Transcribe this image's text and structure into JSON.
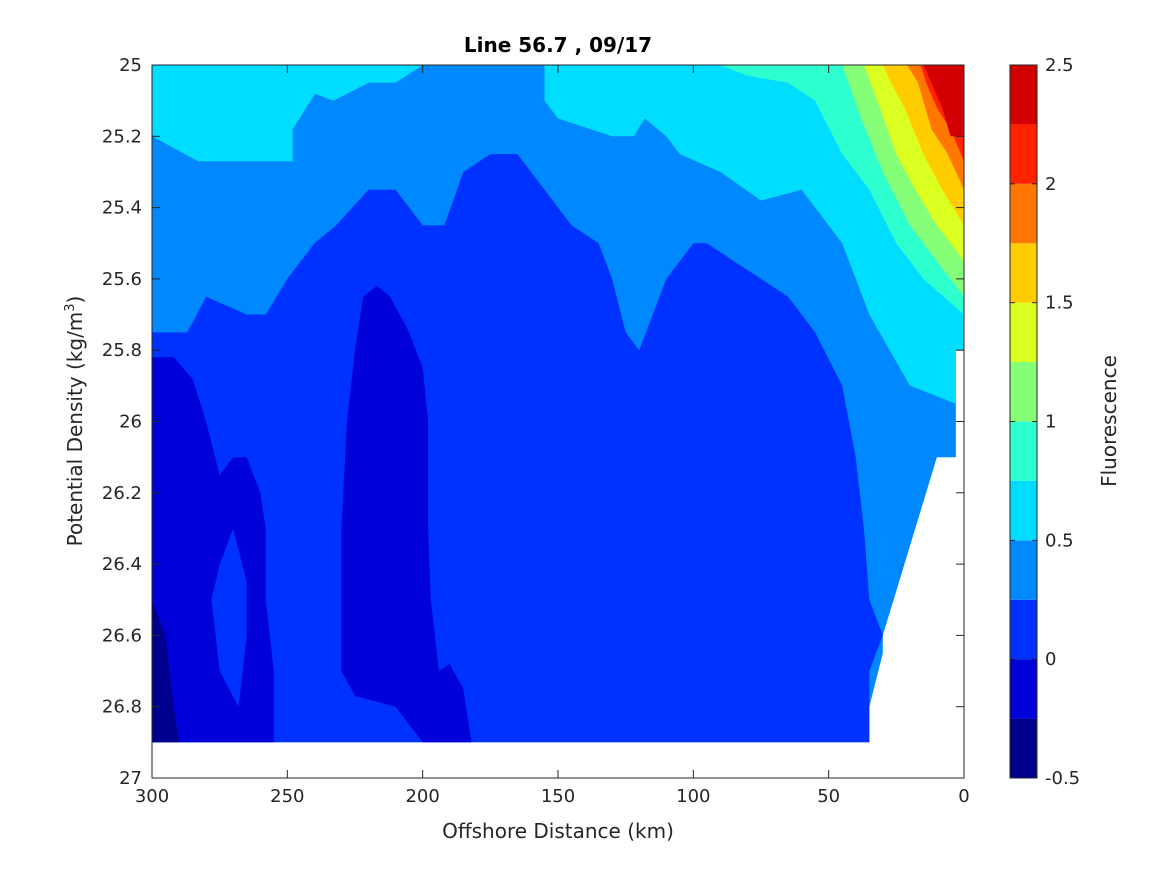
{
  "chart_data": {
    "type": "contour",
    "title": "Line 56.7 , 09/17",
    "xlabel": "Offshore Distance (km)",
    "ylabel_main": "Potential Density (kg/m",
    "ylabel_sup": "3",
    "ylabel_close": ")",
    "colorbar_label": "Fluorescence",
    "xlim": [
      300,
      0
    ],
    "x_reversed": true,
    "ylim": [
      25,
      27
    ],
    "y_reversed": true,
    "x_ticks": [
      300,
      250,
      200,
      150,
      100,
      50,
      0
    ],
    "x_tick_labels": [
      "300",
      "250",
      "200",
      "150",
      "100",
      "50",
      "0"
    ],
    "y_ticks": [
      25,
      25.2,
      25.4,
      25.6,
      25.8,
      26,
      26.2,
      26.4,
      26.6,
      26.8,
      27
    ],
    "y_tick_labels": [
      "25",
      "25.2",
      "25.4",
      "25.6",
      "25.8",
      "26",
      "26.2",
      "26.4",
      "26.6",
      "26.8",
      "27"
    ],
    "colorbar_range": [
      -0.5,
      2.5
    ],
    "colorbar_ticks": [
      -0.5,
      0,
      0.5,
      1,
      1.5,
      2,
      2.5
    ],
    "colorbar_tick_labels": [
      "-0.5",
      "0",
      "0.5",
      "1",
      "1.5",
      "2",
      "2.5"
    ],
    "levels": [
      {
        "min": -0.5,
        "max": -0.25,
        "color": "#00008f"
      },
      {
        "min": -0.25,
        "max": 0.0,
        "color": "#0000d8"
      },
      {
        "min": 0.0,
        "max": 0.25,
        "color": "#0032ff"
      },
      {
        "min": 0.25,
        "max": 0.5,
        "color": "#0088ff"
      },
      {
        "min": 0.5,
        "max": 0.75,
        "color": "#00ddff"
      },
      {
        "min": 0.75,
        "max": 1.0,
        "color": "#2effcf"
      },
      {
        "min": 1.0,
        "max": 1.25,
        "color": "#86ff78"
      },
      {
        "min": 1.25,
        "max": 1.5,
        "color": "#dcff22"
      },
      {
        "min": 1.5,
        "max": 1.75,
        "color": "#ffcc00"
      },
      {
        "min": 1.75,
        "max": 2.0,
        "color": "#ff7700"
      },
      {
        "min": 2.0,
        "max": 2.25,
        "color": "#ff2200"
      },
      {
        "min": 2.25,
        "max": 2.5,
        "color": "#d20000"
      }
    ],
    "regions": [
      {
        "level": 3,
        "points": [
          [
            300,
            25
          ],
          [
            0,
            25
          ],
          [
            0,
            25.8
          ],
          [
            3,
            25.8
          ],
          [
            3,
            26.1
          ],
          [
            10,
            26.1
          ],
          [
            30,
            26.6
          ],
          [
            30,
            26.65
          ],
          [
            35,
            26.8
          ],
          [
            35,
            26.9
          ],
          [
            300,
            26.9
          ]
        ]
      },
      {
        "level": 4,
        "points": [
          [
            300,
            25
          ],
          [
            233,
            25
          ],
          [
            248,
            25.18
          ],
          [
            248,
            25.27
          ],
          [
            270,
            25.27
          ],
          [
            283,
            25.27
          ],
          [
            300,
            25.2
          ]
        ]
      },
      {
        "level": 4,
        "points": [
          [
            243,
            25
          ],
          [
            200,
            25
          ],
          [
            210,
            25.05
          ],
          [
            220,
            25.05
          ],
          [
            233,
            25.1
          ],
          [
            240,
            25.08
          ],
          [
            243,
            25
          ]
        ]
      },
      {
        "level": 4,
        "points": [
          [
            155,
            25
          ],
          [
            0,
            25
          ],
          [
            0,
            25.8
          ],
          [
            3,
            25.8
          ],
          [
            3,
            25.95
          ],
          [
            20,
            25.9
          ],
          [
            35,
            25.7
          ],
          [
            45,
            25.5
          ],
          [
            60,
            25.35
          ],
          [
            75,
            25.38
          ],
          [
            90,
            25.3
          ],
          [
            105,
            25.25
          ],
          [
            110,
            25.2
          ],
          [
            118,
            25.15
          ],
          [
            122,
            25.2
          ],
          [
            130,
            25.2
          ],
          [
            150,
            25.15
          ],
          [
            155,
            25.1
          ]
        ]
      },
      {
        "level": 5,
        "points": [
          [
            90,
            25
          ],
          [
            0,
            25
          ],
          [
            0,
            25.7
          ],
          [
            15,
            25.6
          ],
          [
            25,
            25.5
          ],
          [
            35,
            25.35
          ],
          [
            45,
            25.25
          ],
          [
            55,
            25.1
          ],
          [
            65,
            25.05
          ],
          [
            80,
            25.03
          ]
        ]
      },
      {
        "level": 6,
        "points": [
          [
            45,
            25
          ],
          [
            0,
            25
          ],
          [
            0,
            25.65
          ],
          [
            10,
            25.55
          ],
          [
            20,
            25.45
          ],
          [
            30,
            25.3
          ],
          [
            38,
            25.15
          ]
        ]
      },
      {
        "level": 7,
        "points": [
          [
            37,
            25
          ],
          [
            0,
            25
          ],
          [
            0,
            25.55
          ],
          [
            10,
            25.45
          ],
          [
            18,
            25.35
          ],
          [
            25,
            25.25
          ],
          [
            32,
            25.1
          ]
        ]
      },
      {
        "level": 8,
        "points": [
          [
            30,
            25
          ],
          [
            0,
            25
          ],
          [
            0,
            25.45
          ],
          [
            8,
            25.35
          ],
          [
            15,
            25.25
          ],
          [
            22,
            25.12
          ],
          [
            27,
            25.05
          ]
        ]
      },
      {
        "level": 9,
        "points": [
          [
            21,
            25
          ],
          [
            0,
            25
          ],
          [
            0,
            25.35
          ],
          [
            6,
            25.25
          ],
          [
            12,
            25.18
          ],
          [
            17,
            25.05
          ]
        ]
      },
      {
        "level": 10,
        "points": [
          [
            16,
            25
          ],
          [
            0,
            25
          ],
          [
            0,
            25.27
          ],
          [
            5,
            25.18
          ],
          [
            10,
            25.12
          ],
          [
            14,
            25.05
          ]
        ]
      },
      {
        "level": 11,
        "points": [
          [
            15,
            25
          ],
          [
            0,
            25
          ],
          [
            0,
            25.2
          ],
          [
            5,
            25.2
          ],
          [
            8,
            25.12
          ],
          [
            12,
            25.05
          ]
        ]
      },
      {
        "level": 2,
        "points": [
          [
            300,
            26.9
          ],
          [
            300,
            25.75
          ],
          [
            287,
            25.75
          ],
          [
            280,
            25.65
          ],
          [
            265,
            25.7
          ],
          [
            258,
            25.7
          ],
          [
            250,
            25.6
          ],
          [
            240,
            25.5
          ],
          [
            232,
            25.45
          ],
          [
            220,
            25.35
          ],
          [
            210,
            25.35
          ],
          [
            200,
            25.45
          ],
          [
            192,
            25.45
          ],
          [
            185,
            25.3
          ],
          [
            175,
            25.25
          ],
          [
            165,
            25.25
          ],
          [
            155,
            25.35
          ],
          [
            145,
            25.45
          ],
          [
            135,
            25.5
          ],
          [
            130,
            25.6
          ],
          [
            125,
            25.75
          ],
          [
            120,
            25.8
          ],
          [
            110,
            25.6
          ],
          [
            100,
            25.5
          ],
          [
            95,
            25.5
          ],
          [
            85,
            25.55
          ],
          [
            75,
            25.6
          ],
          [
            65,
            25.65
          ],
          [
            55,
            25.75
          ],
          [
            45,
            25.9
          ],
          [
            40,
            26.1
          ],
          [
            37,
            26.3
          ],
          [
            35,
            26.5
          ],
          [
            30,
            26.6
          ],
          [
            35,
            26.7
          ],
          [
            35,
            26.9
          ],
          [
            125,
            26.9
          ],
          [
            122,
            26.85
          ],
          [
            117,
            26.9
          ]
        ]
      },
      {
        "level": 1,
        "points": [
          [
            300,
            26.9
          ],
          [
            300,
            25.82
          ],
          [
            292,
            25.82
          ],
          [
            285,
            25.88
          ],
          [
            280,
            26
          ],
          [
            275,
            26.15
          ],
          [
            270,
            26.1
          ],
          [
            265,
            26.1
          ],
          [
            260,
            26.2
          ],
          [
            258,
            26.3
          ],
          [
            258,
            26.5
          ],
          [
            255,
            26.7
          ],
          [
            255,
            26.9
          ]
        ]
      },
      {
        "level": 1,
        "points": [
          [
            217,
            25.62
          ],
          [
            212,
            25.65
          ],
          [
            205,
            25.75
          ],
          [
            200,
            25.85
          ],
          [
            198,
            26
          ],
          [
            198,
            26.3
          ],
          [
            197,
            26.5
          ],
          [
            194,
            26.7
          ],
          [
            190,
            26.68
          ],
          [
            185,
            26.75
          ],
          [
            182,
            26.9
          ],
          [
            200,
            26.9
          ],
          [
            205,
            26.85
          ],
          [
            210,
            26.8
          ],
          [
            225,
            26.77
          ],
          [
            230,
            26.7
          ],
          [
            230,
            26.3
          ],
          [
            228,
            26
          ],
          [
            225,
            25.8
          ],
          [
            222,
            25.65
          ]
        ]
      },
      {
        "level": 0,
        "points": [
          [
            300,
            26.5
          ],
          [
            300,
            26.9
          ],
          [
            290,
            26.9
          ],
          [
            292,
            26.8
          ],
          [
            295,
            26.6
          ]
        ]
      },
      {
        "level": 2,
        "points": [
          [
            270,
            26.3
          ],
          [
            265,
            26.45
          ],
          [
            265,
            26.6
          ],
          [
            268,
            26.8
          ],
          [
            275,
            26.7
          ],
          [
            278,
            26.5
          ],
          [
            275,
            26.4
          ]
        ]
      }
    ]
  }
}
